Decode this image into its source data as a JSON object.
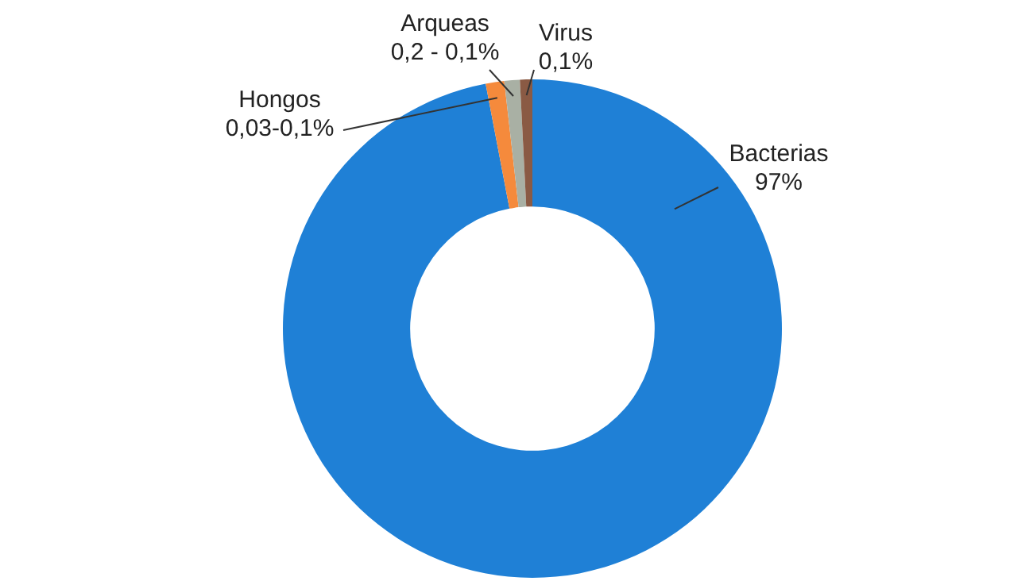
{
  "chart_data": {
    "type": "donut",
    "categories": [
      "Bacterias",
      "Hongos",
      "Arqueas",
      "Virus"
    ],
    "values": [
      97,
      1.2,
      1,
      0.8
    ],
    "colors": [
      "#1f80d6",
      "#f58a3c",
      "#a9b0a4",
      "#8a5a44"
    ],
    "annotations": [
      "97%",
      "0,03-0,1%",
      "0,2 - 0,1%",
      "0,1%"
    ],
    "legend": false
  }
}
